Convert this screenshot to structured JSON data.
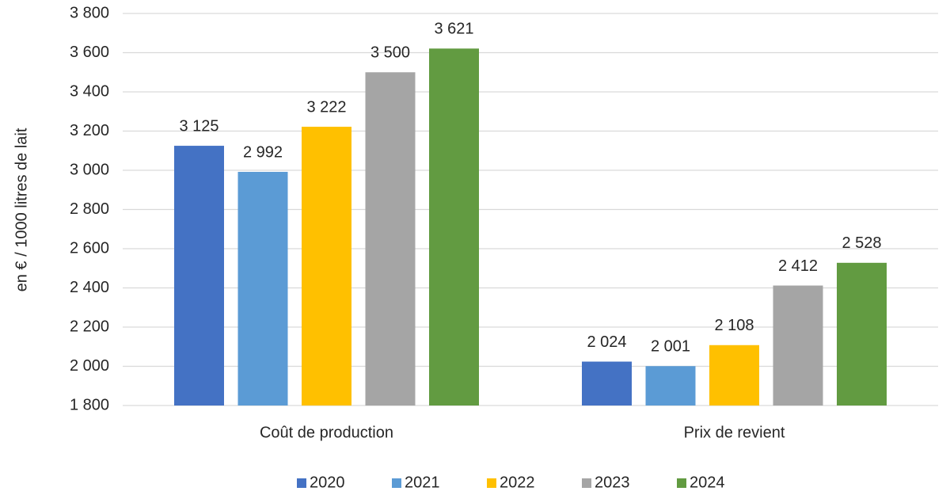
{
  "chart_data": {
    "type": "bar",
    "y_label": "en € / 1000 litres de lait",
    "categories": [
      "Coût de production",
      "Prix de revient"
    ],
    "series": [
      {
        "name": "2020",
        "color": "#4472c4",
        "values": [
          3125,
          2024
        ],
        "value_labels": [
          "3 125",
          "2 024"
        ]
      },
      {
        "name": "2021",
        "color": "#5b9bd5",
        "values": [
          2992,
          2001
        ],
        "value_labels": [
          "2 992",
          "2 001"
        ]
      },
      {
        "name": "2022",
        "color": "#ffc000",
        "values": [
          3222,
          2108
        ],
        "value_labels": [
          "3 222",
          "2 108"
        ]
      },
      {
        "name": "2023",
        "color": "#a5a5a5",
        "values": [
          3500,
          2412
        ],
        "value_labels": [
          "3 500",
          "2 412"
        ]
      },
      {
        "name": "2024",
        "color": "#629b41",
        "values": [
          3621,
          2528
        ],
        "value_labels": [
          "3 621",
          "2 528"
        ]
      }
    ],
    "ylim": [
      1800,
      3800
    ],
    "yticks": [
      {
        "value": 1800,
        "label": "1 800"
      },
      {
        "value": 2000,
        "label": "2 000"
      },
      {
        "value": 2200,
        "label": "2 200"
      },
      {
        "value": 2400,
        "label": "2 400"
      },
      {
        "value": 2600,
        "label": "2 600"
      },
      {
        "value": 2800,
        "label": "2 800"
      },
      {
        "value": 3000,
        "label": "3 000"
      },
      {
        "value": 3200,
        "label": "3 200"
      },
      {
        "value": 3400,
        "label": "3 400"
      },
      {
        "value": 3600,
        "label": "3 600"
      },
      {
        "value": 3800,
        "label": "3 800"
      }
    ],
    "grid": true,
    "legend": "bottom"
  }
}
